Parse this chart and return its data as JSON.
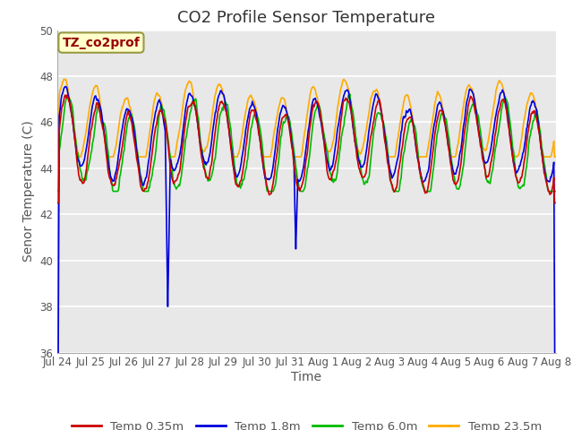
{
  "title": "CO2 Profile Sensor Temperature",
  "xlabel": "Time",
  "ylabel": "Senor Temperature (C)",
  "ylim": [
    36,
    50
  ],
  "yticks": [
    36,
    38,
    40,
    42,
    44,
    46,
    48,
    50
  ],
  "x_tick_labels": [
    "Jul 24",
    "Jul 25",
    "Jul 26",
    "Jul 27",
    "Jul 28",
    "Jul 29",
    "Jul 30",
    "Jul 31",
    "Aug 1",
    "Aug 2",
    "Aug 3",
    "Aug 4",
    "Aug 5",
    "Aug 6",
    "Aug 7",
    "Aug 8"
  ],
  "colors": {
    "Temp 0.35m": "#cc0000",
    "Temp 1.8m": "#0000dd",
    "Temp 6.0m": "#00bb00",
    "Temp 23.5m": "#ffaa00"
  },
  "legend_labels": [
    "Temp 0.35m",
    "Temp 1.8m",
    "Temp 6.0m",
    "Temp 23.5m"
  ],
  "annotation_text": "TZ_co2prof",
  "fig_bg_color": "#ffffff",
  "plot_bg_color": "#e8e8e8",
  "grid_color": "#ffffff",
  "title_fontsize": 13,
  "axis_label_fontsize": 10,
  "tick_fontsize": 8.5,
  "legend_fontsize": 9.5
}
